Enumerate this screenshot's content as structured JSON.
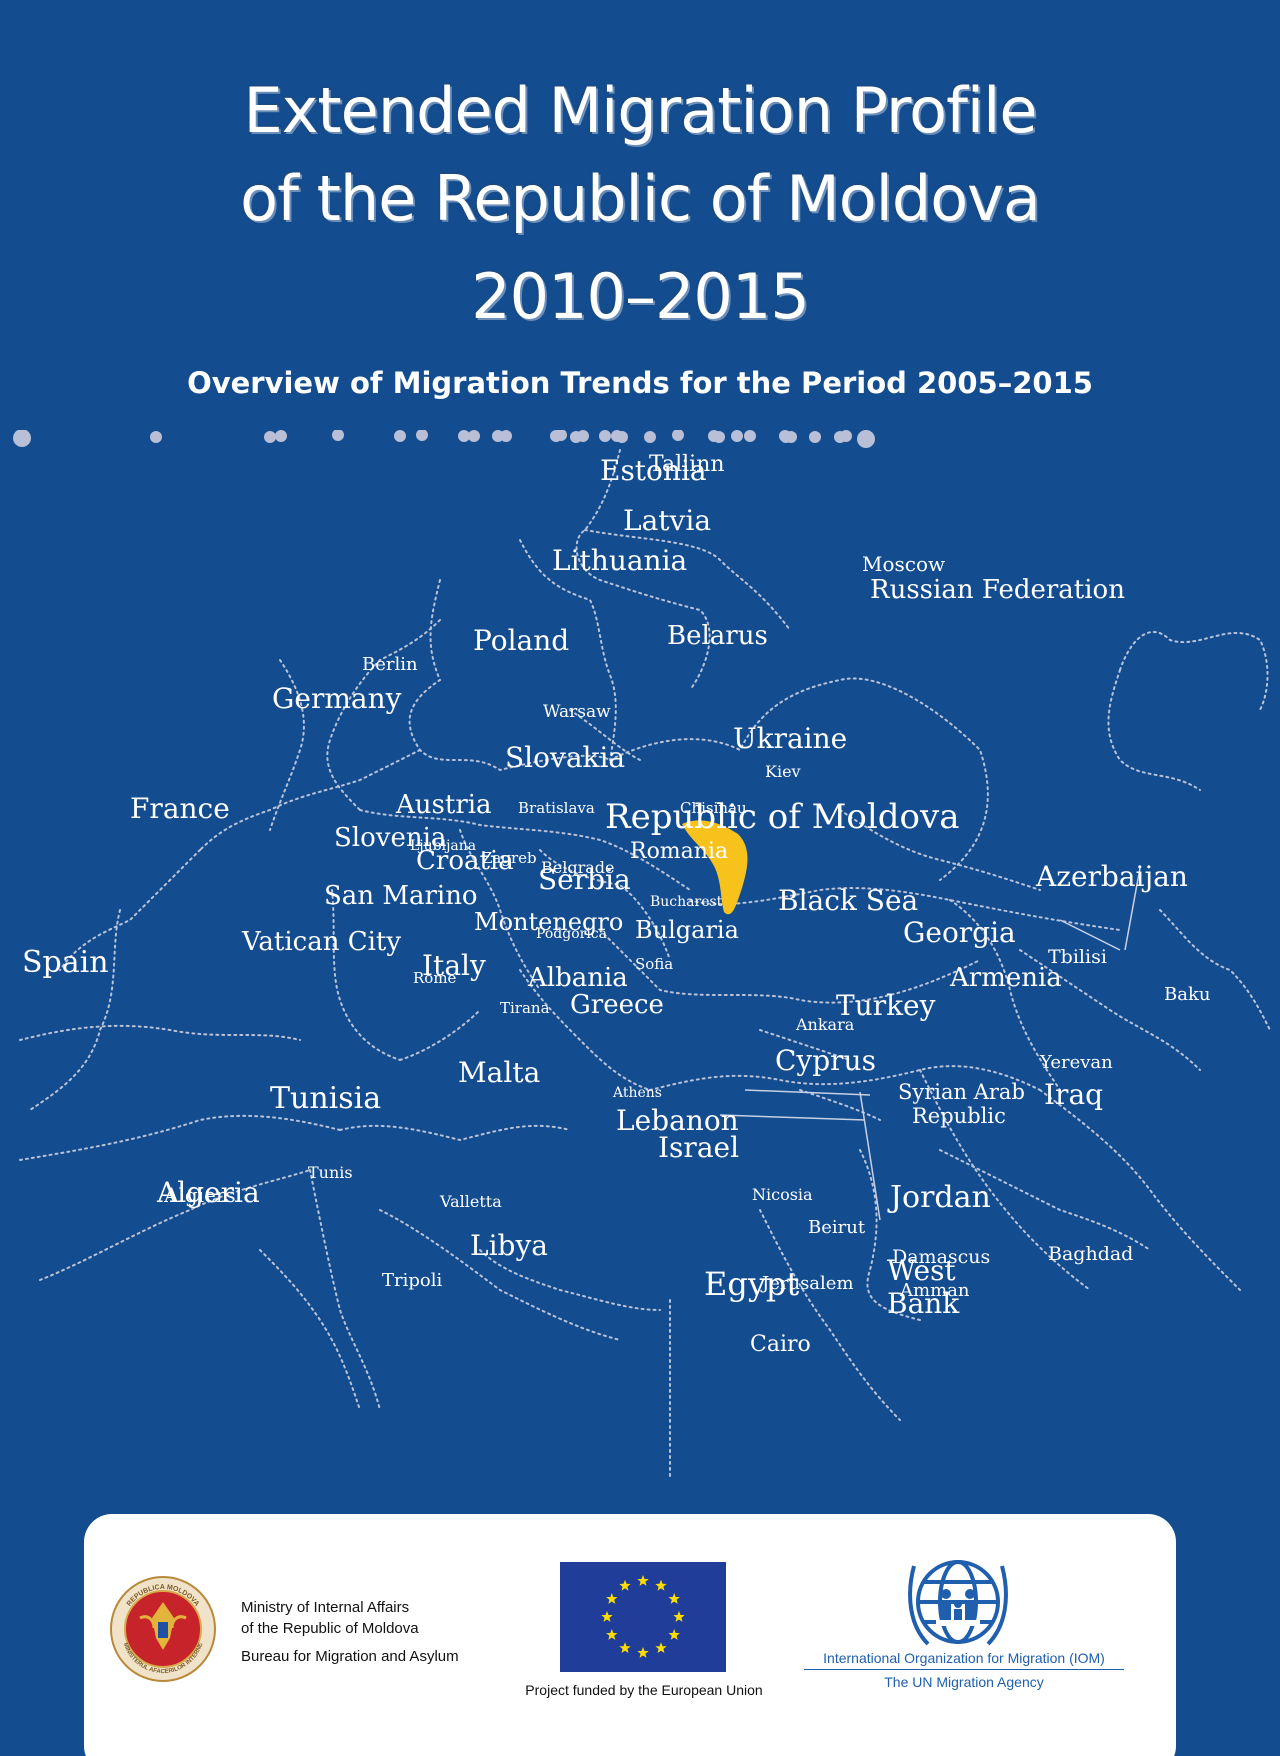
{
  "title": {
    "line1": "Extended Migration Profile",
    "line2": "of the Republic of Moldova",
    "line3": "2010–2015"
  },
  "subtitle": "Overview of Migration Trends for the Period 2005–2015",
  "map": {
    "highlight_country": "Republic of Moldova",
    "highlight_color": "#f7c21b",
    "countries": [
      "Estonia",
      "Latvia",
      "Lithuania",
      "Russian Federation",
      "Poland",
      "Belarus",
      "Germany",
      "Ukraine",
      "Slovakia",
      "France",
      "Austria",
      "Republic of Moldova",
      "Slovenia",
      "Croatia",
      "Romania",
      "Serbia",
      "San Marino",
      "Black Sea",
      "Montenegro",
      "Bulgaria",
      "Azerbaijan",
      "Vatican City",
      "Georgia",
      "Italy",
      "Albania",
      "Armenia",
      "Spain",
      "Greece",
      "Turkey",
      "Cyprus",
      "Malta",
      "Tunisia",
      "Syrian Arab Republic",
      "Iraq",
      "Lebanon",
      "Israel",
      "Jordan",
      "Algeria",
      "Libya",
      "Egypt",
      "West Bank"
    ],
    "cities": [
      "Tallinn",
      "Moscow",
      "Berlin",
      "Warsaw",
      "Kiev",
      "Bratislava",
      "Chisinau",
      "Ljubljana",
      "Zagreb",
      "Belgrade",
      "Bucharest",
      "Podgorica",
      "Sofia",
      "Rome",
      "Tbilisi",
      "Tirana",
      "Ankara",
      "Baku",
      "Yerevan",
      "Athens",
      "Tunis",
      "Algiers",
      "Valletta",
      "Nicosia",
      "Beirut",
      "Damascus",
      "Baghdad",
      "Tripoli",
      "Jerusalem",
      "Amman",
      "Cairo"
    ]
  },
  "footer": {
    "ministry_line1": "Ministry of Internal Affairs",
    "ministry_line2": "of the Republic of Moldova",
    "ministry_line3": "Bureau for Migration and Asylum",
    "seal_top_text": "REPUBLICA MOLDOVA",
    "seal_bottom_text": "MINISTERUL AFACERILOR INTERNE",
    "eu_caption": "Project funded by the European Union",
    "iom_line1": "International Organization for Migration (IOM)",
    "iom_line2": "The UN Migration Agency",
    "eu_flag_color": "#1f3d99",
    "eu_star_color": "#ffdd00",
    "iom_color": "#1f5fae"
  }
}
